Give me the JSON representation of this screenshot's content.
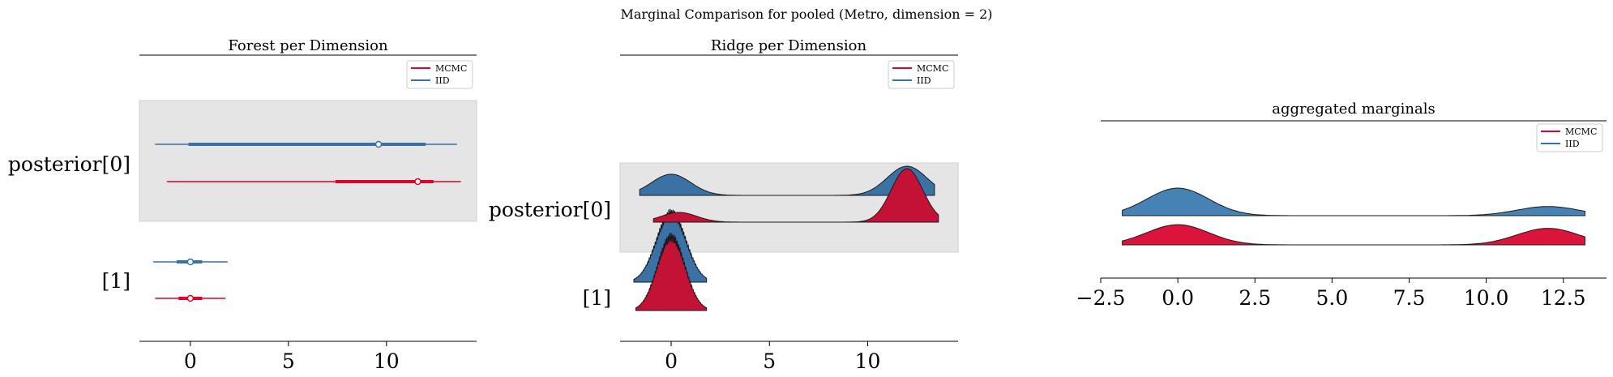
{
  "figure": {
    "suptitle": "Marginal Comparison for pooled (Metro, dimension = 2)"
  },
  "colors": {
    "mcmc_line": "#e4002b",
    "iid_line": "#3b6fa8",
    "ridge_mcmc_fill": "#c41236",
    "ridge_iid_fill": "#3b72a5",
    "agg_mcmc_fill": "#dc143c",
    "agg_iid_fill": "#4682b4",
    "highlight": "#e5e5e5"
  },
  "chart_data": [
    {
      "type": "forest",
      "title": "Forest per Dimension",
      "xlabel": "",
      "ylabel": "",
      "xlim": [
        -2.6,
        14.6
      ],
      "xticks": [
        0,
        5,
        10
      ],
      "rows": [
        "posterior[0]",
        "[1]"
      ],
      "highlight_row": "posterior[0]",
      "legend": {
        "placement": "top-right",
        "entries": [
          "MCMC",
          "IID"
        ]
      },
      "series": [
        {
          "name": "IID",
          "intervals": [
            {
              "row": "posterior[0]",
              "hdi_low": -1.8,
              "hdi_high": 13.6,
              "iqr_low": -0.1,
              "iqr_high": 12.0,
              "point": 9.6
            },
            {
              "row": "[1]",
              "hdi_low": -1.9,
              "hdi_high": 1.9,
              "iqr_low": -0.7,
              "iqr_high": 0.6,
              "point": 0.0
            }
          ]
        },
        {
          "name": "MCMC",
          "intervals": [
            {
              "row": "posterior[0]",
              "hdi_low": -1.2,
              "hdi_high": 13.8,
              "iqr_low": 7.4,
              "iqr_high": 12.4,
              "point": 11.6
            },
            {
              "row": "[1]",
              "hdi_low": -1.8,
              "hdi_high": 1.8,
              "iqr_low": -0.6,
              "iqr_high": 0.6,
              "point": 0.0
            }
          ]
        }
      ]
    },
    {
      "type": "ridge",
      "title": "Ridge per Dimension",
      "xlabel": "",
      "ylabel": "",
      "xlim": [
        -2.6,
        14.6
      ],
      "xticks": [
        0,
        5,
        10
      ],
      "rows": [
        "posterior[0]",
        "[1]"
      ],
      "highlight_row": "posterior[0]",
      "legend": {
        "placement": "top-right",
        "entries": [
          "MCMC",
          "IID"
        ]
      },
      "series": [
        {
          "name": "IID",
          "ridges": [
            {
              "row": "posterior[0]",
              "x_min": -1.6,
              "x_max": 13.4,
              "components": [
                {
                  "mu": 0.0,
                  "sigma": 1.0,
                  "weight": 0.42
                },
                {
                  "mu": 12.0,
                  "sigma": 1.0,
                  "weight": 0.58
                }
              ]
            },
            {
              "row": "[1]",
              "x_min": -1.9,
              "x_max": 1.8,
              "components": [
                {
                  "mu": 0.0,
                  "sigma": 0.75,
                  "weight": 1.0
                }
              ]
            }
          ]
        },
        {
          "name": "MCMC",
          "ridges": [
            {
              "row": "posterior[0]",
              "x_min": -0.9,
              "x_max": 13.6,
              "components": [
                {
                  "mu": 0.4,
                  "sigma": 0.9,
                  "weight": 0.17
                },
                {
                  "mu": 12.0,
                  "sigma": 0.8,
                  "weight": 0.83
                }
              ]
            },
            {
              "row": "[1]",
              "x_min": -1.8,
              "x_max": 1.8,
              "components": [
                {
                  "mu": 0.0,
                  "sigma": 0.7,
                  "weight": 1.0
                }
              ]
            }
          ]
        }
      ]
    },
    {
      "type": "ridge",
      "title": "aggregated marginals",
      "xlabel": "",
      "ylabel": "",
      "xlim": [
        -2.5,
        13.9
      ],
      "xticks": [
        -2.5,
        0.0,
        2.5,
        5.0,
        7.5,
        10.0,
        12.5
      ],
      "xtick_labels": [
        "−2.5",
        "0.0",
        "2.5",
        "5.0",
        "7.5",
        "10.0",
        "12.5"
      ],
      "legend": {
        "placement": "top-right",
        "entries": [
          "MCMC",
          "IID"
        ]
      },
      "series": [
        {
          "name": "IID",
          "x_min": -1.8,
          "x_max": 13.2,
          "components": [
            {
              "mu": 0.0,
              "sigma": 1.0,
              "weight": 0.75
            },
            {
              "mu": 12.0,
              "sigma": 1.0,
              "weight": 0.25
            }
          ]
        },
        {
          "name": "MCMC",
          "x_min": -1.8,
          "x_max": 13.2,
          "components": [
            {
              "mu": 0.0,
              "sigma": 1.0,
              "weight": 0.55
            },
            {
              "mu": 12.0,
              "sigma": 1.0,
              "weight": 0.45
            }
          ]
        }
      ]
    }
  ]
}
